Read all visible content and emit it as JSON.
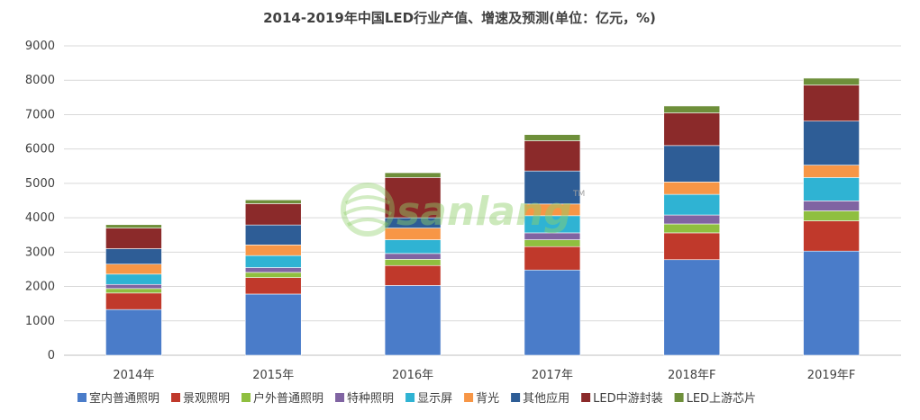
{
  "chart_data": {
    "type": "bar",
    "stacked": true,
    "title": "2014-2019年中国LED行业产值、增速及预测(单位：亿元，%)",
    "xlabel": "",
    "ylabel": "",
    "ylim": [
      0,
      9000
    ],
    "yticks": [
      0,
      1000,
      2000,
      3000,
      4000,
      5000,
      6000,
      7000,
      8000,
      9000
    ],
    "grid": true,
    "legend_position": "bottom",
    "categories": [
      "2014年",
      "2015年",
      "2016年",
      "2017年",
      "2018年F",
      "2019年F"
    ],
    "series": [
      {
        "name": "室内普通照明",
        "color": "#4a7cc9",
        "values": [
          1330,
          1780,
          2030,
          2480,
          2780,
          3030
        ]
      },
      {
        "name": "景观照明",
        "color": "#c0392b",
        "values": [
          480,
          480,
          580,
          680,
          780,
          880
        ]
      },
      {
        "name": "户外普通照明",
        "color": "#8fbf3f",
        "values": [
          130,
          150,
          180,
          200,
          260,
          290
        ]
      },
      {
        "name": "特种照明",
        "color": "#8064a2",
        "values": [
          120,
          140,
          170,
          200,
          260,
          290
        ]
      },
      {
        "name": "显示屏",
        "color": "#2fb3d3",
        "values": [
          300,
          350,
          400,
          500,
          600,
          680
        ]
      },
      {
        "name": "背光",
        "color": "#f79646",
        "values": [
          290,
          310,
          340,
          340,
          360,
          360
        ]
      },
      {
        "name": "其他应用",
        "color": "#2e5d96",
        "values": [
          450,
          580,
          300,
          960,
          1060,
          1280
        ]
      },
      {
        "name": "LED中游封装",
        "color": "#8b2a2a",
        "values": [
          600,
          620,
          1170,
          880,
          950,
          1050
        ]
      },
      {
        "name": "LED上游芯片",
        "color": "#6e8f3a",
        "values": [
          100,
          110,
          140,
          180,
          200,
          200
        ]
      }
    ]
  },
  "watermark": {
    "text": "sanlang",
    "mark": "TM",
    "color": "#8fd06a"
  }
}
